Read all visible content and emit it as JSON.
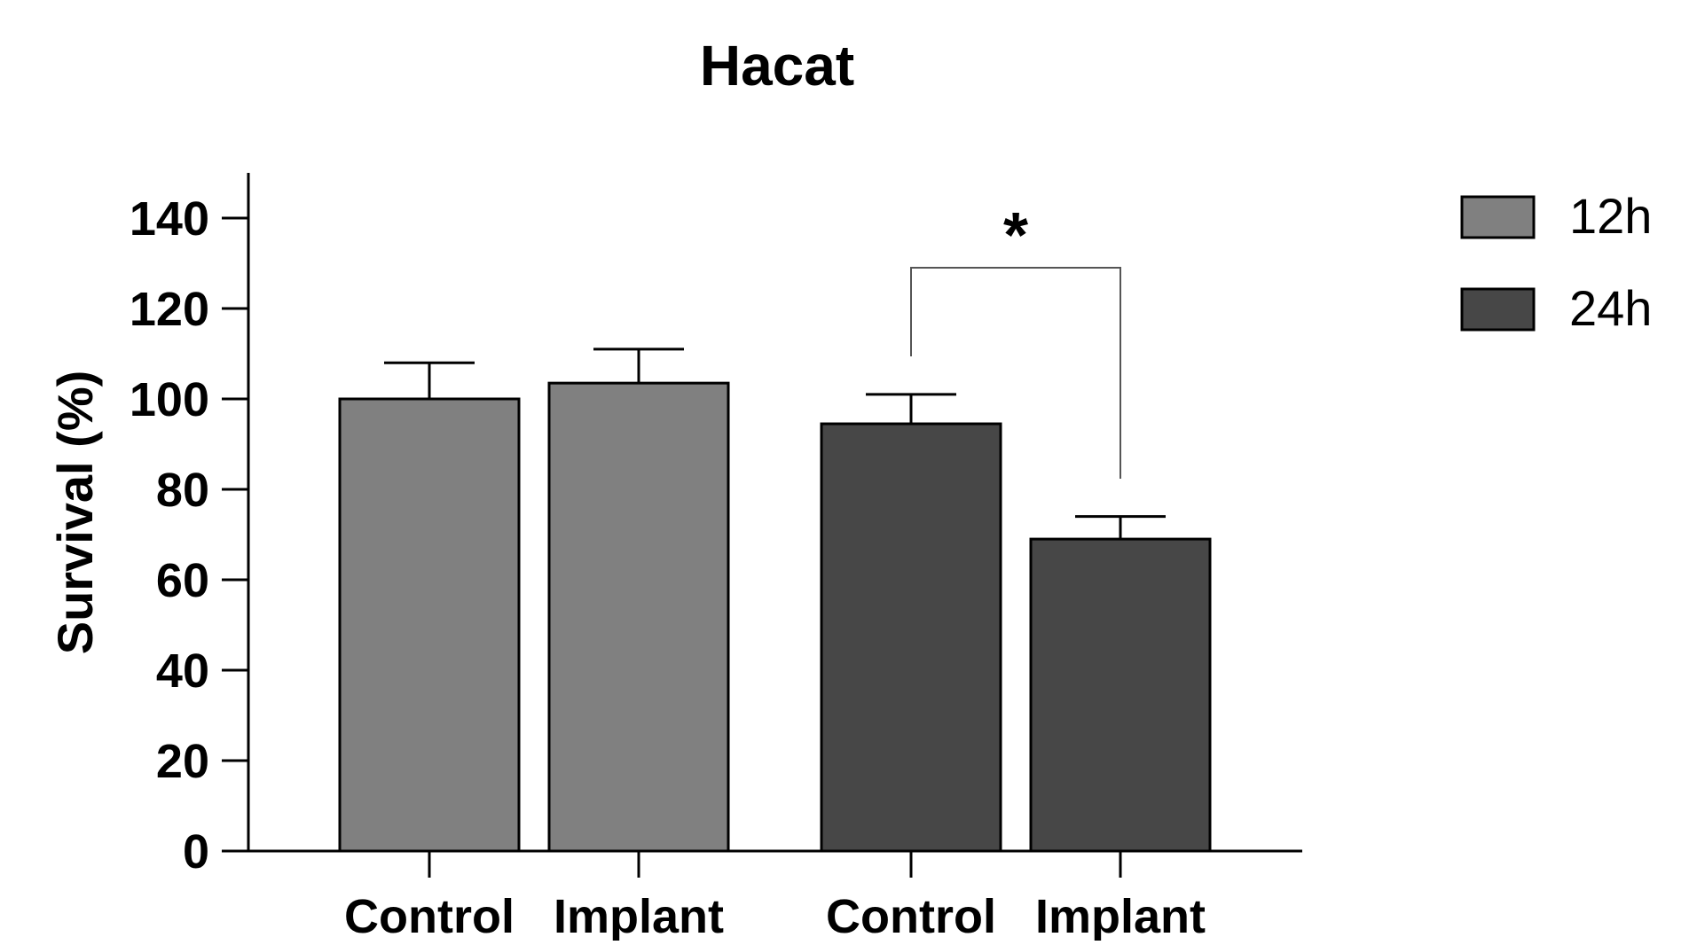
{
  "chart_data": {
    "type": "bar",
    "title": "Hacat",
    "xlabel": "",
    "ylabel": "Survival (%)",
    "ylim": [
      0,
      150
    ],
    "yticks": [
      0,
      20,
      40,
      60,
      80,
      100,
      120,
      140
    ],
    "grid": false,
    "legend_position": "top-right",
    "bars": [
      {
        "category": "Control",
        "series": "12h",
        "value": 100,
        "error": 8
      },
      {
        "category": "Implant",
        "series": "12h",
        "value": 103.5,
        "error": 7.5
      },
      {
        "category": "Control",
        "series": "24h",
        "value": 94.5,
        "error": 6.5
      },
      {
        "category": "Implant",
        "series": "24h",
        "value": 69,
        "error": 5
      }
    ],
    "series": [
      {
        "name": "12h",
        "color": "#808080"
      },
      {
        "name": "24h",
        "color": "#474747"
      }
    ],
    "significance": [
      {
        "label": "*",
        "between": [
          "Control",
          "Implant"
        ],
        "series": "24h"
      }
    ]
  }
}
